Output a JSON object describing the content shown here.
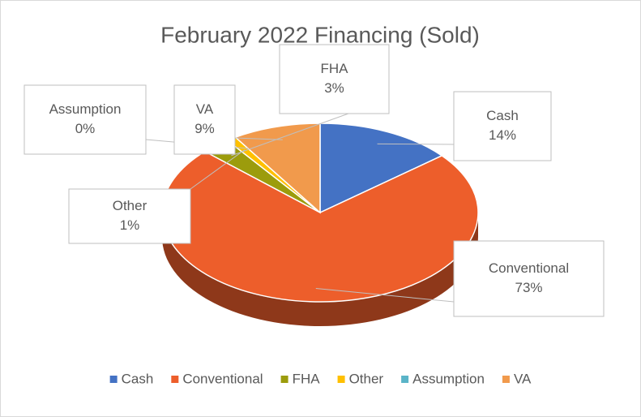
{
  "chart_data": {
    "type": "pie",
    "title": "February 2022 Financing (Sold)",
    "categories": [
      "Cash",
      "Conventional",
      "FHA",
      "Other",
      "Assumption",
      "VA"
    ],
    "values": [
      14,
      73,
      3,
      1,
      0,
      9
    ],
    "value_labels": [
      "14%",
      "73%",
      "3%",
      "1%",
      "0%",
      "9%"
    ],
    "colors": [
      "#4472c4",
      "#ed5e2b",
      "#9c9c0c",
      "#ffc000",
      "#5ab4c8",
      "#f19a4c"
    ],
    "legend": "bottom"
  }
}
